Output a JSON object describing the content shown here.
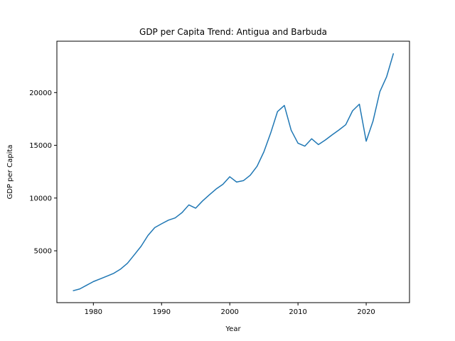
{
  "chart_data": {
    "type": "line",
    "title": "GDP per Capita Trend: Antigua and Barbuda",
    "xlabel": "Year",
    "ylabel": "GDP per Capita",
    "xlim": [
      1974.65,
      2026.35
    ],
    "ylim": [
      85,
      24870
    ],
    "xticks": [
      1980,
      1990,
      2000,
      2010,
      2020
    ],
    "yticks": [
      5000,
      10000,
      15000,
      20000
    ],
    "grid": false,
    "series": [
      {
        "color": "#1f77b4",
        "x": [
          1977,
          1978,
          1979,
          1980,
          1981,
          1982,
          1983,
          1984,
          1985,
          1986,
          1987,
          1988,
          1989,
          1990,
          1991,
          1992,
          1993,
          1994,
          1995,
          1996,
          1997,
          1998,
          1999,
          2000,
          2001,
          2002,
          2003,
          2004,
          2005,
          2006,
          2007,
          2008,
          2009,
          2010,
          2011,
          2012,
          2013,
          2014,
          2015,
          2016,
          2017,
          2018,
          2019,
          2020,
          2021,
          2022,
          2023,
          2024
        ],
        "y": [
          1210,
          1380,
          1730,
          2080,
          2340,
          2600,
          2870,
          3270,
          3820,
          4620,
          5430,
          6450,
          7200,
          7560,
          7900,
          8120,
          8620,
          9350,
          9040,
          9720,
          10300,
          10860,
          11310,
          12020,
          11520,
          11650,
          12160,
          13010,
          14380,
          16170,
          18200,
          18780,
          16430,
          15200,
          14920,
          15620,
          15070,
          15500,
          15990,
          16450,
          16950,
          18270,
          18900,
          15390,
          17290,
          20080,
          21510,
          23720
        ]
      }
    ]
  }
}
